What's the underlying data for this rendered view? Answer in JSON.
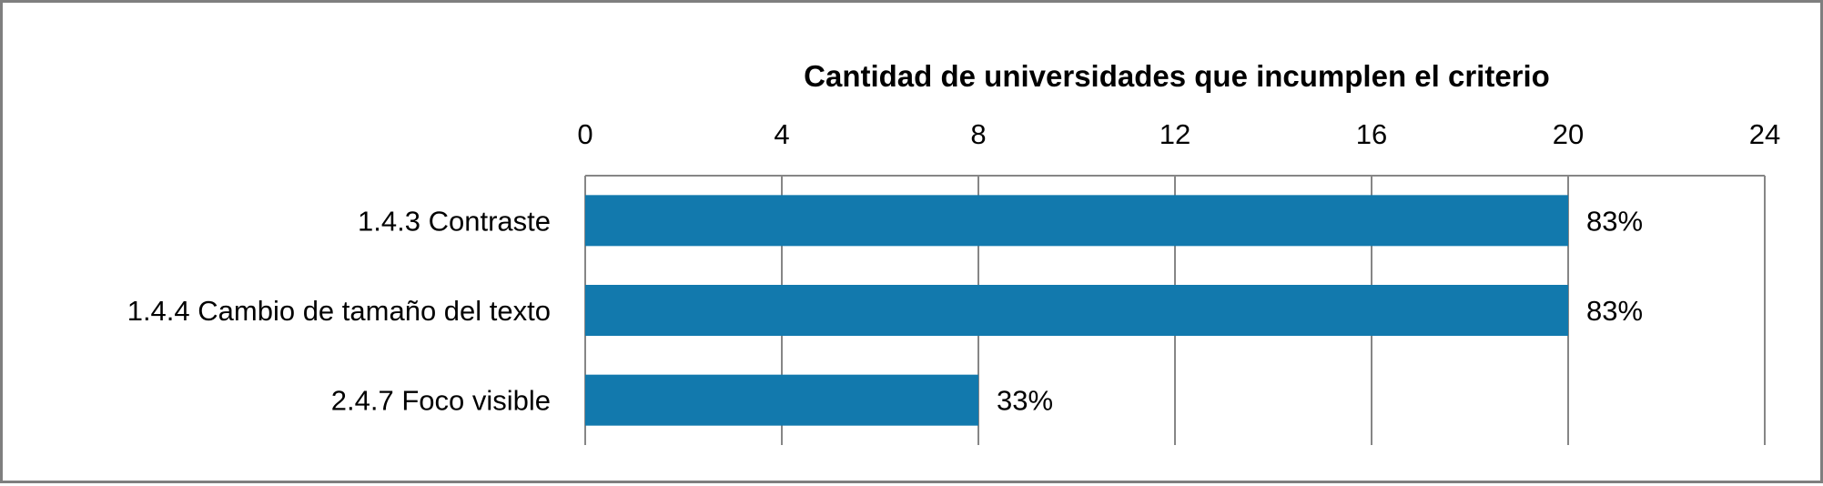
{
  "chart_data": {
    "type": "bar",
    "orientation": "horizontal",
    "title": "Cantidad de universidades que incumplen el criterio",
    "xlabel": "",
    "ylabel": "",
    "categories": [
      "1.4.3 Contraste",
      "1.4.4 Cambio de tamaño del texto",
      "2.4.7 Foco visible"
    ],
    "values": [
      20,
      20,
      8
    ],
    "data_labels": [
      "83%",
      "83%",
      "33%"
    ],
    "xlim": [
      0,
      24
    ],
    "x_ticks": [
      "0",
      "4",
      "8",
      "12",
      "16",
      "20",
      "24"
    ],
    "x_axis_position": "top",
    "grid": true,
    "legend": "none",
    "bar_color": "#1279ad",
    "grid_color": "#868686"
  }
}
